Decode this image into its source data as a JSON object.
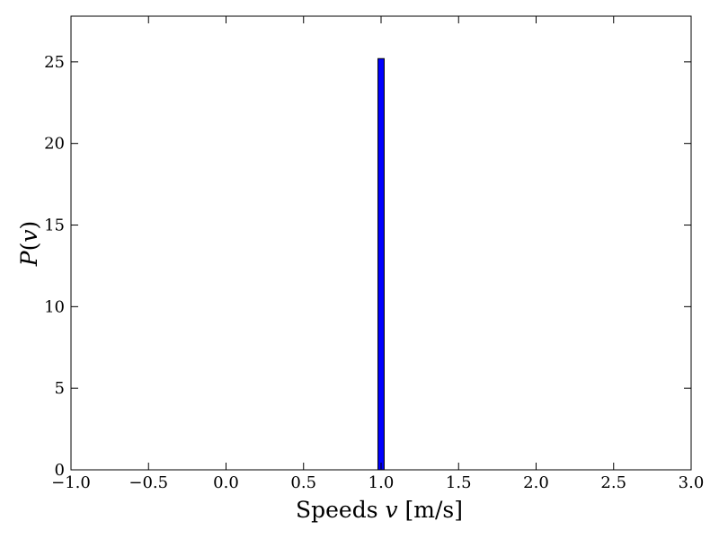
{
  "chart_data": {
    "type": "bar",
    "title": "",
    "xlabel": "Speeds v [m/s]",
    "xlabel_parts": {
      "prefix": "Speeds ",
      "variable": "v",
      "unit": " [m/s]"
    },
    "ylabel": "P(v)",
    "ylabel_parts": {
      "function": "P",
      "open": "(",
      "variable": "v",
      "close": ")"
    },
    "xlim": [
      -1.0,
      3.0
    ],
    "ylim": [
      0,
      27.8
    ],
    "xticks": [
      -1.0,
      -0.5,
      0.0,
      0.5,
      1.0,
      1.5,
      2.0,
      2.5,
      3.0
    ],
    "xtick_labels": [
      "−1.0",
      "−0.5",
      "0.0",
      "0.5",
      "1.0",
      "1.5",
      "2.0",
      "2.5",
      "3.0"
    ],
    "yticks": [
      0,
      5,
      10,
      15,
      20,
      25
    ],
    "ytick_labels": [
      "0",
      "5",
      "10",
      "15",
      "20",
      "25"
    ],
    "bars": [
      {
        "x_start": 0.98,
        "x_end": 1.02,
        "value": 25.2
      }
    ],
    "grid": false,
    "legend": "none",
    "colors": {
      "bar_fill": "#0000ff",
      "bar_edge": "#000000",
      "axes": "#000000",
      "background": "#ffffff"
    }
  }
}
